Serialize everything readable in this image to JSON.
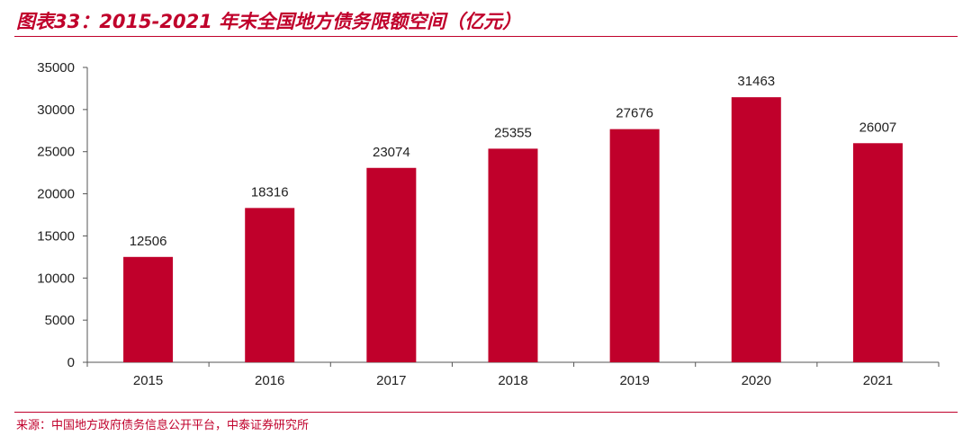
{
  "header": {
    "title": "图表33：2015-2021 年末全国地方债务限额空间（亿元）"
  },
  "footer": {
    "source": "来源：中国地方政府债务信息公开平台，中泰证券研究所"
  },
  "chart_data": {
    "type": "bar",
    "title": "",
    "xlabel": "",
    "ylabel": "",
    "categories": [
      "2015",
      "2016",
      "2017",
      "2018",
      "2019",
      "2020",
      "2021"
    ],
    "values": [
      12506,
      18316,
      23074,
      25355,
      27676,
      31463,
      26007
    ],
    "ylim": [
      0,
      35000
    ],
    "yticks": [
      0,
      5000,
      10000,
      15000,
      20000,
      25000,
      30000,
      35000
    ],
    "bar_color": "#c0002b",
    "grid": false,
    "legend": "none"
  }
}
